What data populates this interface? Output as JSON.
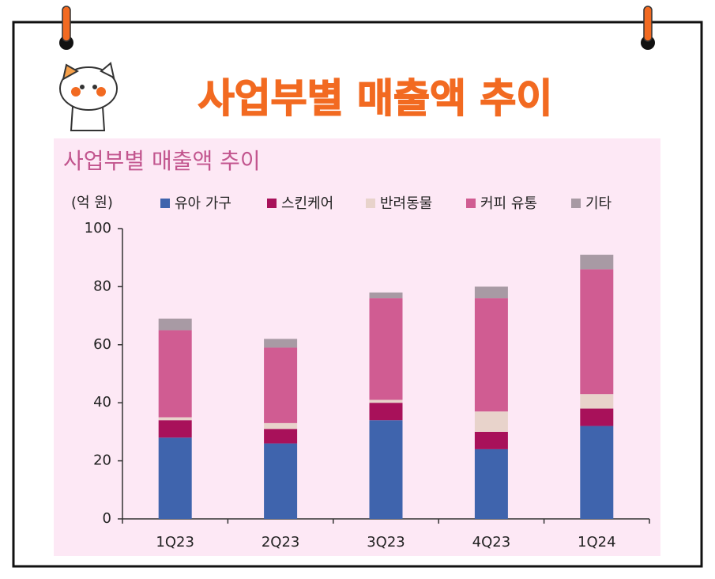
{
  "header": {
    "title": "사업부별 매출액 추이"
  },
  "chart_data": {
    "type": "bar",
    "stacked": true,
    "title": "사업부별 매출액 추이",
    "y_label": "(억 원)",
    "categories": [
      "1Q23",
      "2Q23",
      "3Q23",
      "4Q23",
      "1Q24"
    ],
    "series": [
      {
        "name": "유아 가구",
        "color": "#3f64ad",
        "values": [
          28,
          26,
          34,
          24,
          32
        ]
      },
      {
        "name": "스킨케어",
        "color": "#a8115a",
        "values": [
          6,
          5,
          6,
          6,
          6
        ]
      },
      {
        "name": "반려동물",
        "color": "#e8d3cb",
        "values": [
          1,
          2,
          1,
          7,
          5
        ]
      },
      {
        "name": "커피 유통",
        "color": "#d05c92",
        "values": [
          30,
          26,
          35,
          39,
          43
        ]
      },
      {
        "name": "기타",
        "color": "#a89aa4",
        "values": [
          4,
          3,
          2,
          4,
          5
        ]
      }
    ],
    "ylim": [
      0,
      100
    ],
    "yticks": [
      0,
      20,
      40,
      60,
      80,
      100
    ],
    "grid": false
  }
}
